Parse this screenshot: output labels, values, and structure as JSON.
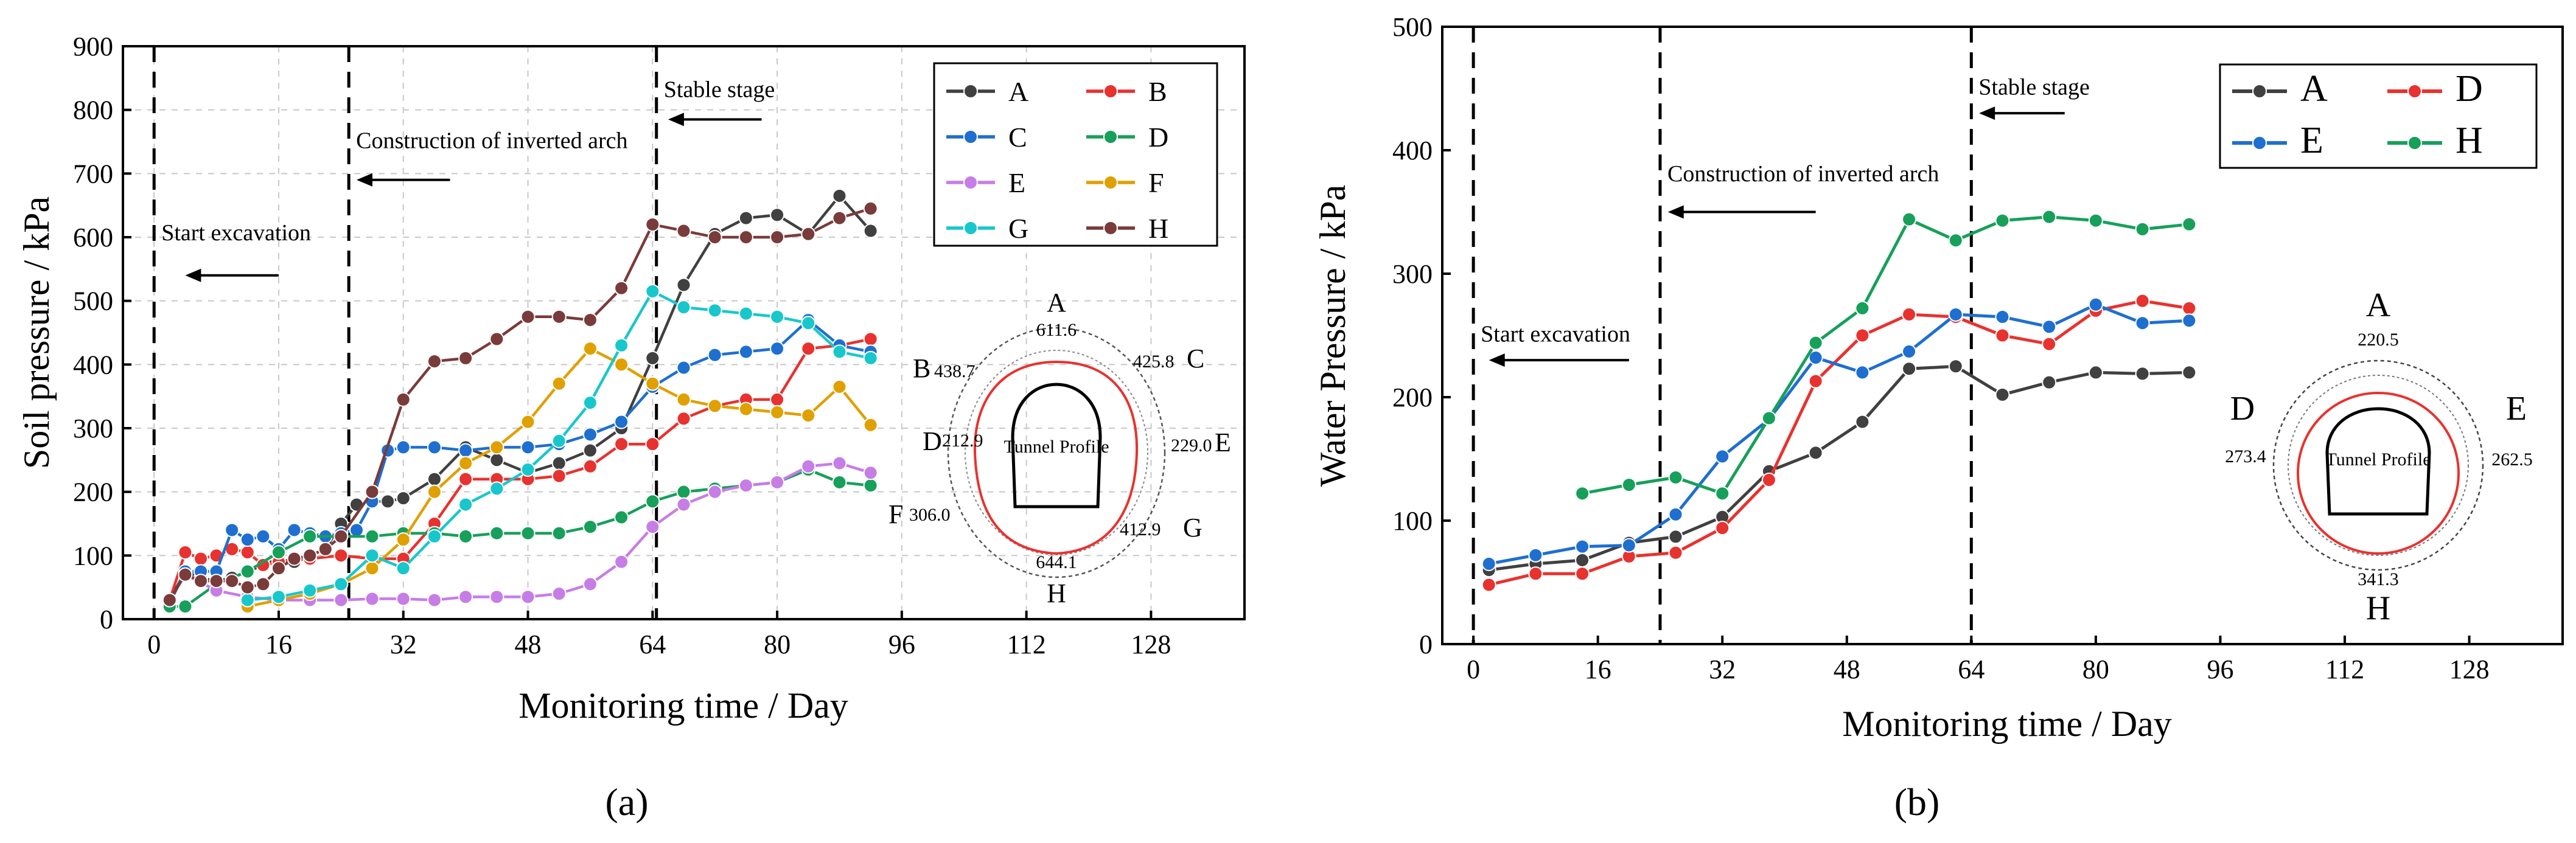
{
  "chart_data": [
    {
      "type": "line",
      "panel_label": "(a)",
      "xlabel": "Monitoring time / Day",
      "ylabel": "Soil pressure / kPa",
      "xlim": [
        -4,
        140
      ],
      "ylim": [
        0,
        900
      ],
      "xticks": [
        0,
        16,
        32,
        48,
        64,
        80,
        96,
        112,
        128
      ],
      "yticks": [
        0,
        100,
        200,
        300,
        400,
        500,
        600,
        700,
        800,
        900
      ],
      "grid": true,
      "legend_position": "top-right",
      "phase_lines": [
        {
          "x": 0,
          "label": "Start excavation",
          "text_y": 595,
          "arrow_y": 540,
          "arrow_from": 16,
          "arrow_to": 4
        },
        {
          "x": 25,
          "label": "Construction of inverted arch",
          "text_y": 740,
          "arrow_y": 690,
          "arrow_from": 38,
          "arrow_to": 26
        },
        {
          "x": 64.5,
          "label": "Stable stage",
          "text_y": 820,
          "arrow_y": 785,
          "arrow_from": 78,
          "arrow_to": 66
        }
      ],
      "series": [
        {
          "name": "A",
          "color": "#404040",
          "x": [
            2,
            4,
            6,
            8,
            10,
            12,
            14,
            16,
            18,
            20,
            22,
            24,
            26,
            28,
            30,
            32,
            36,
            40,
            44,
            48,
            52,
            56,
            60,
            64,
            68,
            72,
            76,
            80,
            84,
            88,
            92
          ],
          "y": [
            30,
            75,
            65,
            60,
            65,
            75,
            85,
            95,
            90,
            100,
            110,
            150,
            180,
            185,
            185,
            190,
            220,
            270,
            250,
            230,
            245,
            265,
            300,
            410,
            525,
            605,
            630,
            635,
            605,
            665,
            610
          ]
        },
        {
          "name": "B",
          "color": "#e8322f",
          "x": [
            2,
            4,
            6,
            8,
            10,
            12,
            14,
            16,
            20,
            24,
            28,
            32,
            36,
            40,
            44,
            48,
            52,
            56,
            60,
            64,
            68,
            72,
            76,
            80,
            84,
            88,
            92
          ],
          "y": [
            30,
            105,
            95,
            100,
            110,
            105,
            85,
            90,
            95,
            100,
            95,
            95,
            150,
            220,
            220,
            220,
            225,
            240,
            275,
            275,
            315,
            335,
            345,
            345,
            425,
            430,
            440
          ]
        },
        {
          "name": "C",
          "color": "#1e6fd0",
          "x": [
            2,
            4,
            6,
            8,
            10,
            12,
            14,
            16,
            18,
            20,
            22,
            24,
            26,
            28,
            30,
            32,
            36,
            40,
            44,
            48,
            52,
            56,
            60,
            64,
            68,
            72,
            76,
            80,
            84,
            88,
            92
          ],
          "y": [
            25,
            75,
            75,
            75,
            140,
            125,
            130,
            110,
            140,
            135,
            130,
            135,
            140,
            185,
            265,
            270,
            270,
            265,
            270,
            270,
            275,
            290,
            310,
            365,
            395,
            415,
            420,
            425,
            470,
            430,
            420
          ]
        },
        {
          "name": "D",
          "color": "#16a05a",
          "x": [
            2,
            4,
            8,
            12,
            16,
            20,
            24,
            28,
            32,
            36,
            40,
            44,
            48,
            52,
            56,
            60,
            64,
            68,
            72,
            76,
            80,
            84,
            88,
            92
          ],
          "y": [
            20,
            20,
            55,
            75,
            105,
            130,
            130,
            130,
            135,
            135,
            130,
            135,
            135,
            135,
            145,
            160,
            185,
            200,
            205,
            210,
            215,
            235,
            215,
            210
          ]
        },
        {
          "name": "E",
          "color": "#c77de6",
          "x": [
            4,
            8,
            12,
            16,
            20,
            24,
            28,
            32,
            36,
            40,
            44,
            48,
            52,
            56,
            60,
            64,
            68,
            72,
            76,
            80,
            84,
            88,
            92
          ],
          "y": [
            70,
            45,
            35,
            30,
            30,
            30,
            32,
            32,
            30,
            35,
            35,
            35,
            40,
            55,
            90,
            145,
            180,
            200,
            210,
            215,
            240,
            245,
            230
          ]
        },
        {
          "name": "F",
          "color": "#e0a000",
          "x": [
            12,
            16,
            20,
            24,
            28,
            32,
            36,
            40,
            44,
            48,
            52,
            56,
            60,
            64,
            68,
            72,
            76,
            80,
            84,
            88,
            92
          ],
          "y": [
            20,
            30,
            40,
            55,
            80,
            125,
            200,
            245,
            270,
            310,
            370,
            425,
            400,
            370,
            345,
            335,
            330,
            325,
            320,
            365,
            305
          ]
        },
        {
          "name": "G",
          "color": "#18c7cc",
          "x": [
            12,
            16,
            20,
            24,
            28,
            32,
            36,
            40,
            44,
            48,
            52,
            56,
            60,
            64,
            68,
            72,
            76,
            80,
            84,
            88,
            92
          ],
          "y": [
            30,
            35,
            45,
            55,
            100,
            80,
            130,
            180,
            205,
            235,
            280,
            340,
            430,
            515,
            490,
            485,
            480,
            475,
            465,
            420,
            410
          ]
        },
        {
          "name": "H",
          "color": "#7a3b3b",
          "x": [
            2,
            4,
            6,
            8,
            10,
            12,
            14,
            16,
            18,
            20,
            22,
            24,
            28,
            32,
            36,
            40,
            44,
            48,
            52,
            56,
            60,
            64,
            68,
            72,
            76,
            80,
            84,
            88,
            92
          ],
          "y": [
            30,
            70,
            60,
            60,
            60,
            50,
            55,
            80,
            95,
            100,
            110,
            130,
            200,
            345,
            405,
            410,
            440,
            475,
            475,
            470,
            520,
            620,
            610,
            600,
            600,
            600,
            605,
            630,
            645
          ]
        }
      ],
      "inset": {
        "title_label": "Tunnel Profile",
        "points": [
          {
            "label": "A",
            "value": "611.6"
          },
          {
            "label": "B",
            "value": "438.7"
          },
          {
            "label": "C",
            "value": "425.8"
          },
          {
            "label": "D",
            "value": "212.9"
          },
          {
            "label": "E",
            "value": "229.0"
          },
          {
            "label": "F",
            "value": "306.0"
          },
          {
            "label": "G",
            "value": "412.9"
          },
          {
            "label": "H",
            "value": "644.1"
          }
        ]
      }
    },
    {
      "type": "line",
      "panel_label": "(b)",
      "xlabel": "Monitoring time / Day",
      "ylabel": "Water Pressure / kPa",
      "xlim": [
        -4,
        140
      ],
      "ylim": [
        0,
        500
      ],
      "xticks": [
        0,
        16,
        32,
        48,
        64,
        80,
        96,
        112,
        128
      ],
      "yticks": [
        0,
        100,
        200,
        300,
        400,
        500
      ],
      "grid": false,
      "legend_position": "top-right",
      "phase_lines": [
        {
          "x": 0,
          "label": "Start excavation",
          "text_y": 245,
          "arrow_y": 230,
          "arrow_from": 20,
          "arrow_to": 2
        },
        {
          "x": 24,
          "label": "Construction of inverted arch",
          "text_y": 375,
          "arrow_y": 350,
          "arrow_from": 44,
          "arrow_to": 25
        },
        {
          "x": 64,
          "label": "Stable stage",
          "text_y": 445,
          "arrow_y": 430,
          "arrow_from": 76,
          "arrow_to": 65
        }
      ],
      "series": [
        {
          "name": "A",
          "color": "#404040",
          "x": [
            2,
            8,
            14,
            20,
            26,
            32,
            38,
            44,
            50,
            56,
            62,
            68,
            74,
            80,
            86,
            92
          ],
          "y": [
            60,
            65,
            68,
            82,
            87,
            103,
            140,
            155,
            180,
            223,
            225,
            202,
            212,
            220,
            219,
            220
          ]
        },
        {
          "name": "D",
          "color": "#e8322f",
          "x": [
            2,
            8,
            14,
            20,
            26,
            32,
            38,
            44,
            50,
            56,
            62,
            68,
            74,
            80,
            86,
            92
          ],
          "y": [
            48,
            57,
            57,
            71,
            74,
            94,
            133,
            213,
            250,
            267,
            265,
            250,
            243,
            270,
            278,
            272
          ]
        },
        {
          "name": "E",
          "color": "#1e6fd0",
          "x": [
            2,
            8,
            14,
            20,
            26,
            32,
            38,
            44,
            50,
            56,
            62,
            68,
            74,
            80,
            86,
            92
          ],
          "y": [
            65,
            72,
            79,
            80,
            105,
            152,
            182,
            232,
            220,
            237,
            267,
            265,
            257,
            275,
            260,
            262
          ]
        },
        {
          "name": "H",
          "color": "#16a05a",
          "x": [
            14,
            20,
            26,
            32,
            38,
            44,
            50,
            56,
            62,
            68,
            74,
            80,
            86,
            92
          ],
          "y": [
            122,
            129,
            135,
            122,
            183,
            244,
            272,
            344,
            327,
            343,
            346,
            343,
            336,
            340
          ]
        }
      ],
      "inset": {
        "title_label": "Tunnel Profile",
        "points": [
          {
            "label": "A",
            "value": "220.5"
          },
          {
            "label": "D",
            "value": "273.4"
          },
          {
            "label": "E",
            "value": "262.5"
          },
          {
            "label": "H",
            "value": "341.3"
          }
        ]
      }
    }
  ]
}
